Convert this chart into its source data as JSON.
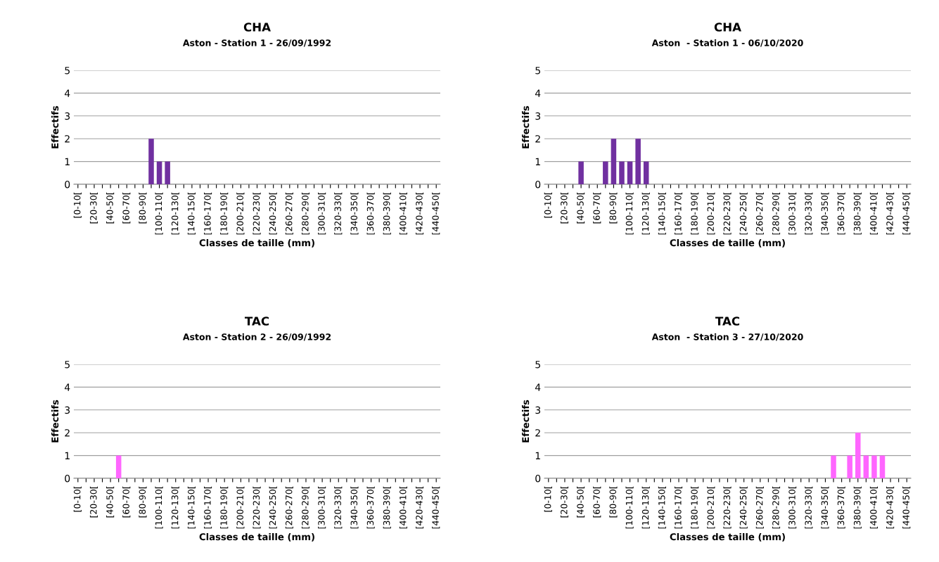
{
  "chart_data": [
    {
      "type": "bar",
      "title": "CHA",
      "subtitle": "Aston - Station 1 - 26/09/1992",
      "xlabel": "Classes de taille (mm)",
      "ylabel": "Effectifs",
      "color": "#7030a0",
      "ylim": [
        0,
        5
      ],
      "yticks": [
        0,
        1,
        2,
        3,
        4,
        5
      ],
      "grid": "y",
      "legend": false,
      "categories": [
        "[0-10[",
        null,
        "[20-30[",
        null,
        "[40-50[",
        null,
        "[60-70[",
        null,
        "[80-90[",
        null,
        "[100-110[",
        null,
        "[120-130[",
        null,
        "[140-150[",
        null,
        "[160-170[",
        null,
        "[180-190[",
        null,
        "[200-210[",
        null,
        "[220-230[",
        null,
        "[240-250[",
        null,
        "[260-270[",
        null,
        "[280-290[",
        null,
        "[300-310[",
        null,
        "[320-330[",
        null,
        "[340-350[",
        null,
        "[360-370[",
        null,
        "[380-390[",
        null,
        "[400-410[",
        null,
        "[420-430[",
        null,
        "[440-450["
      ],
      "values": [
        0,
        0,
        0,
        0,
        0,
        0,
        0,
        0,
        0,
        2,
        1,
        1,
        0,
        0,
        0,
        0,
        0,
        0,
        0,
        0,
        0,
        0,
        0,
        0,
        0,
        0,
        0,
        0,
        0,
        0,
        0,
        0,
        0,
        0,
        0,
        0,
        0,
        0,
        0,
        0,
        0,
        0,
        0,
        0,
        0
      ]
    },
    {
      "type": "bar",
      "title": "CHA",
      "subtitle": "Aston  - Station 1 - 06/10/2020",
      "xlabel": "Classes de taille (mm)",
      "ylabel": "Effectifs",
      "color": "#7030a0",
      "ylim": [
        0,
        5
      ],
      "yticks": [
        0,
        1,
        2,
        3,
        4,
        5
      ],
      "grid": "y",
      "legend": false,
      "categories": [
        "[0-10[",
        null,
        "[20-30[",
        null,
        "[40-50[",
        null,
        "[60-70[",
        null,
        "[80-90[",
        null,
        "[100-110[",
        null,
        "[120-130[",
        null,
        "[140-150[",
        null,
        "[160-170[",
        null,
        "[180-190[",
        null,
        "[200-210[",
        null,
        "[220-230[",
        null,
        "[240-250[",
        null,
        "[260-270[",
        null,
        "[280-290[",
        null,
        "[300-310[",
        null,
        "[320-330[",
        null,
        "[340-350[",
        null,
        "[360-370[",
        null,
        "[380-390[",
        null,
        "[400-410[",
        null,
        "[420-430[",
        null,
        "[440-450["
      ],
      "values": [
        0,
        0,
        0,
        0,
        1,
        0,
        0,
        1,
        2,
        1,
        1,
        2,
        1,
        0,
        0,
        0,
        0,
        0,
        0,
        0,
        0,
        0,
        0,
        0,
        0,
        0,
        0,
        0,
        0,
        0,
        0,
        0,
        0,
        0,
        0,
        0,
        0,
        0,
        0,
        0,
        0,
        0,
        0,
        0,
        0
      ]
    },
    {
      "type": "bar",
      "title": "TAC",
      "subtitle": "Aston - Station 2 - 26/09/1992",
      "xlabel": "Classes de taille (mm)",
      "ylabel": "Effectifs",
      "color": "#ff66ff",
      "ylim": [
        0,
        5
      ],
      "yticks": [
        0,
        1,
        2,
        3,
        4,
        5
      ],
      "grid": "y",
      "legend": false,
      "categories": [
        "[0-10[",
        null,
        "[20-30[",
        null,
        "[40-50[",
        null,
        "[60-70[",
        null,
        "[80-90[",
        null,
        "[100-110[",
        null,
        "[120-130[",
        null,
        "[140-150[",
        null,
        "[160-170[",
        null,
        "[180-190[",
        null,
        "[200-210[",
        null,
        "[220-230[",
        null,
        "[240-250[",
        null,
        "[260-270[",
        null,
        "[280-290[",
        null,
        "[300-310[",
        null,
        "[320-330[",
        null,
        "[340-350[",
        null,
        "[360-370[",
        null,
        "[380-390[",
        null,
        "[400-410[",
        null,
        "[420-430[",
        null,
        "[440-450["
      ],
      "values": [
        0,
        0,
        0,
        0,
        0,
        1,
        0,
        0,
        0,
        0,
        0,
        0,
        0,
        0,
        0,
        0,
        0,
        0,
        0,
        0,
        0,
        0,
        0,
        0,
        0,
        0,
        0,
        0,
        0,
        0,
        0,
        0,
        0,
        0,
        0,
        0,
        0,
        0,
        0,
        0,
        0,
        0,
        0,
        0,
        0
      ]
    },
    {
      "type": "bar",
      "title": "TAC",
      "subtitle": "Aston  - Station 3 - 27/10/2020",
      "xlabel": "Classes de taille (mm)",
      "ylabel": "Effectifs",
      "color": "#ff66ff",
      "ylim": [
        0,
        5
      ],
      "yticks": [
        0,
        1,
        2,
        3,
        4,
        5
      ],
      "grid": "y",
      "legend": false,
      "categories": [
        "[0-10[",
        null,
        "[20-30[",
        null,
        "[40-50[",
        null,
        "[60-70[",
        null,
        "[80-90[",
        null,
        "[100-110[",
        null,
        "[120-130[",
        null,
        "[140-150[",
        null,
        "[160-170[",
        null,
        "[180-190[",
        null,
        "[200-210[",
        null,
        "[220-230[",
        null,
        "[240-250[",
        null,
        "[260-270[",
        null,
        "[280-290[",
        null,
        "[300-310[",
        null,
        "[320-330[",
        null,
        "[340-350[",
        null,
        "[360-370[",
        null,
        "[380-390[",
        null,
        "[400-410[",
        null,
        "[420-430[",
        null,
        "[440-450["
      ],
      "values": [
        0,
        0,
        0,
        0,
        0,
        0,
        0,
        0,
        0,
        0,
        0,
        0,
        0,
        0,
        0,
        0,
        0,
        0,
        0,
        0,
        0,
        0,
        0,
        0,
        0,
        0,
        0,
        0,
        0,
        0,
        0,
        0,
        0,
        0,
        0,
        1,
        0,
        1,
        2,
        1,
        1,
        1,
        0,
        0,
        0
      ]
    }
  ]
}
